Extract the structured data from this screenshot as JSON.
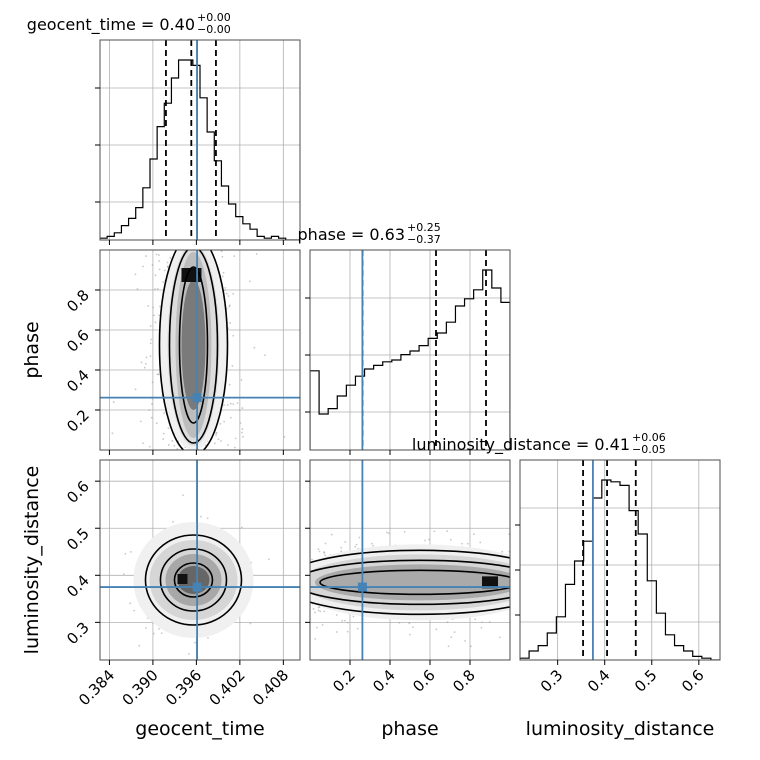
{
  "colors": {
    "truth": "#4682b4",
    "frame": "#4d4d4d",
    "grid": "#b0b0b0",
    "hist": "#000000"
  },
  "chart_data": {
    "type": "corner",
    "parameters": [
      {
        "name": "geocent_time",
        "axis_label": "geocent_time",
        "title": "geocent_time = 0.40",
        "title_plus": "+0.00",
        "title_minus": "−0.00",
        "range": [
          0.3827,
          0.4103
        ],
        "ticks": [
          0.384,
          0.39,
          0.396,
          0.402,
          0.408
        ],
        "tick_labels": [
          "0.384",
          "0.390",
          "0.396",
          "0.402",
          "0.408"
        ],
        "truth": 0.3961,
        "quantiles": [
          0.3918,
          0.3953,
          0.3987
        ],
        "hist_density": [
          0.01,
          0.02,
          0.04,
          0.08,
          0.12,
          0.18,
          0.29,
          0.45,
          0.63,
          0.76,
          0.9,
          1.0,
          1.0,
          0.97,
          0.79,
          0.6,
          0.44,
          0.3,
          0.2,
          0.13,
          0.09,
          0.06,
          0.02,
          0.01,
          0.02,
          0.01,
          0.0,
          0.0
        ]
      },
      {
        "name": "phase",
        "axis_label": "phase",
        "title": "phase = 0.63",
        "title_plus": "+0.25",
        "title_minus": "−0.37",
        "range": [
          0.0,
          1.0
        ],
        "ticks": [
          0.2,
          0.4,
          0.6,
          0.8
        ],
        "tick_labels": [
          "0.2",
          "0.4",
          "0.6",
          "0.8"
        ],
        "truth": 0.262,
        "quantiles": [
          0.262,
          0.63,
          0.88
        ],
        "hist_density": [
          0.44,
          0.2,
          0.23,
          0.3,
          0.36,
          0.41,
          0.45,
          0.47,
          0.49,
          0.5,
          0.53,
          0.55,
          0.58,
          0.62,
          0.65,
          0.71,
          0.8,
          0.84,
          0.89,
          1.0,
          0.9,
          0.82
        ]
      },
      {
        "name": "luminosity_distance",
        "axis_label": "luminosity_distance",
        "title": "luminosity_distance = 0.41",
        "title_plus": "+0.06",
        "title_minus": "−0.05",
        "range": [
          0.22,
          0.645
        ],
        "ticks": [
          0.3,
          0.4,
          0.5,
          0.6
        ],
        "tick_labels": [
          "0.3",
          "0.4",
          "0.5",
          "0.6"
        ],
        "truth": 0.375,
        "quantiles": [
          0.354,
          0.405,
          0.466
        ],
        "hist_density": [
          0.01,
          0.05,
          0.08,
          0.15,
          0.24,
          0.42,
          0.55,
          0.66,
          0.9,
          1.0,
          0.99,
          0.97,
          0.83,
          0.7,
          0.44,
          0.26,
          0.14,
          0.08,
          0.05,
          0.02,
          0.01,
          0.0
        ]
      }
    ],
    "pairs": [
      {
        "x": "geocent_time",
        "y": "phase",
        "truth": [
          0.3961,
          0.262
        ]
      },
      {
        "x": "geocent_time",
        "y": "luminosity_distance",
        "truth": [
          0.3961,
          0.375
        ]
      },
      {
        "x": "phase",
        "y": "luminosity_distance",
        "truth": [
          0.262,
          0.375
        ]
      }
    ],
    "grid": true
  }
}
